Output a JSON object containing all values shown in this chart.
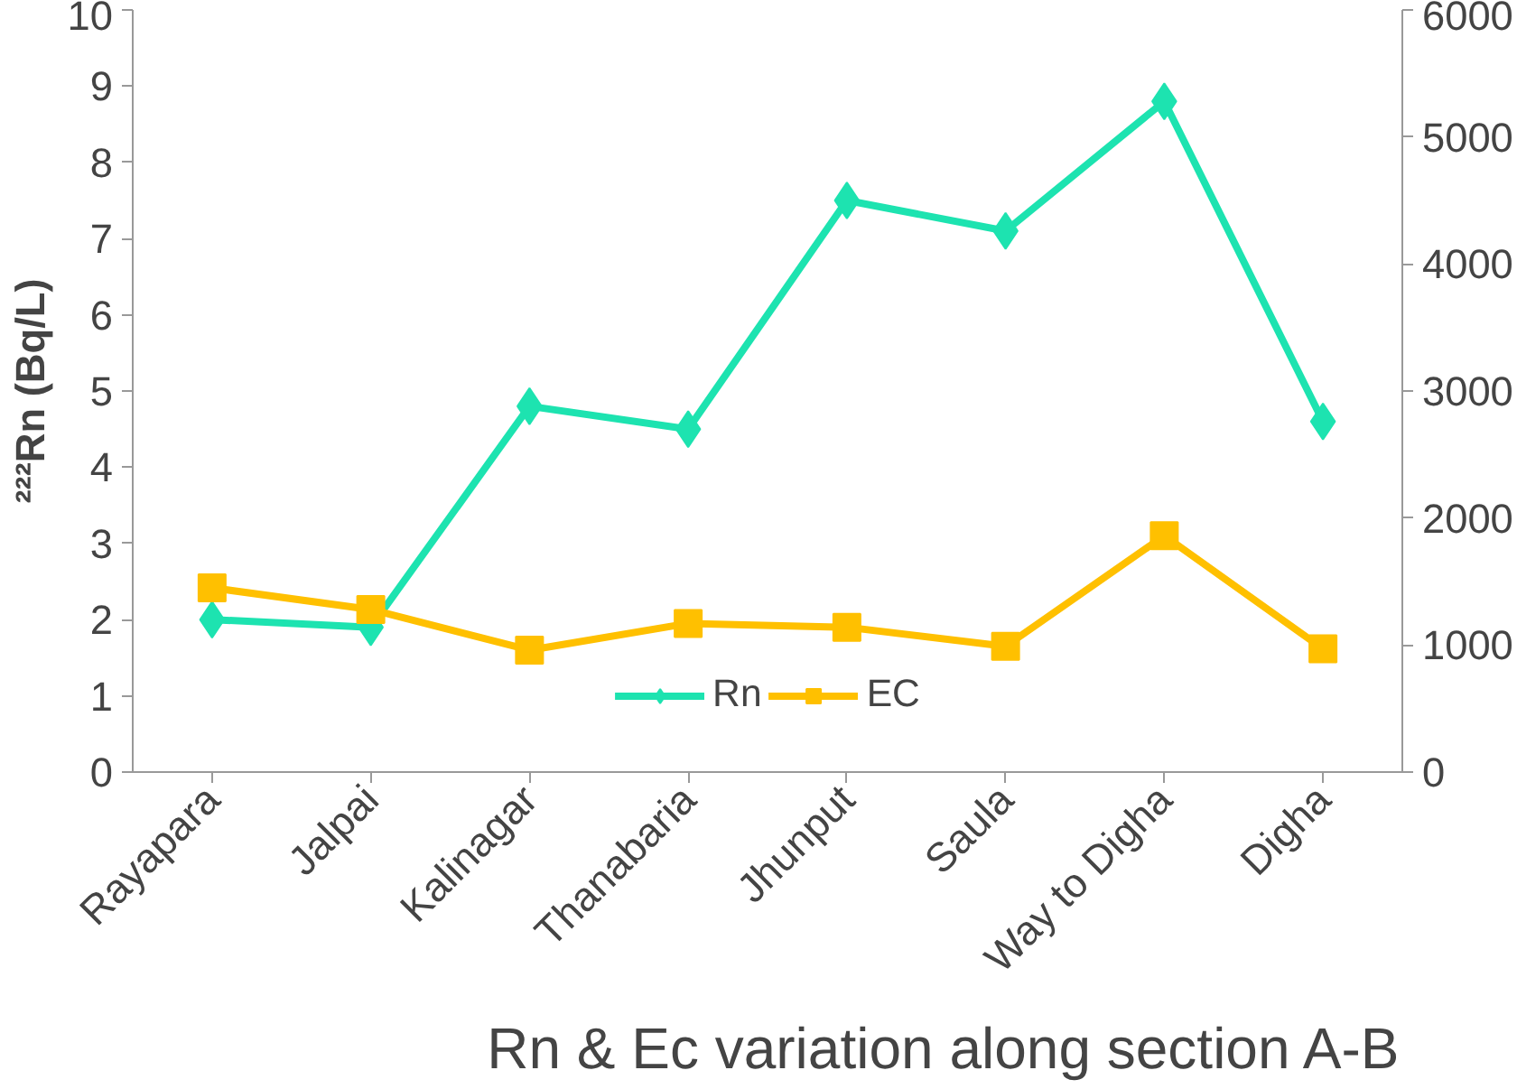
{
  "chart_data": {
    "type": "line",
    "title": "Rn & Ec variation along section A-B",
    "ylabel": "²²²Rn (Bq/L)",
    "categories": [
      "Rayapara",
      "Jalpai",
      "Kalinagar",
      "Thanabaria",
      "Jhunput",
      "Saula",
      "Way to Digha",
      "Digha"
    ],
    "series": [
      {
        "name": "Rn",
        "color": "#1de3b0",
        "marker": "diamond",
        "values": [
          2.0,
          1.9,
          4.8,
          4.5,
          7.5,
          7.1,
          8.8,
          4.6
        ]
      },
      {
        "name": "EC",
        "color": "#ffc000",
        "marker": "square",
        "axis": "y2",
        "values": [
          1450,
          1280,
          960,
          1170,
          1140,
          990,
          1860,
          970
        ]
      }
    ],
    "ylim": [
      0,
      10
    ],
    "yticks": [
      0,
      1,
      2,
      3,
      4,
      5,
      6,
      7,
      8,
      9,
      10
    ],
    "y2lim": [
      0,
      6000
    ],
    "y2ticks": [
      0,
      1000,
      2000,
      3000,
      4000,
      5000,
      6000
    ],
    "grid": false,
    "legend": "bottom",
    "line_style": "solid"
  }
}
